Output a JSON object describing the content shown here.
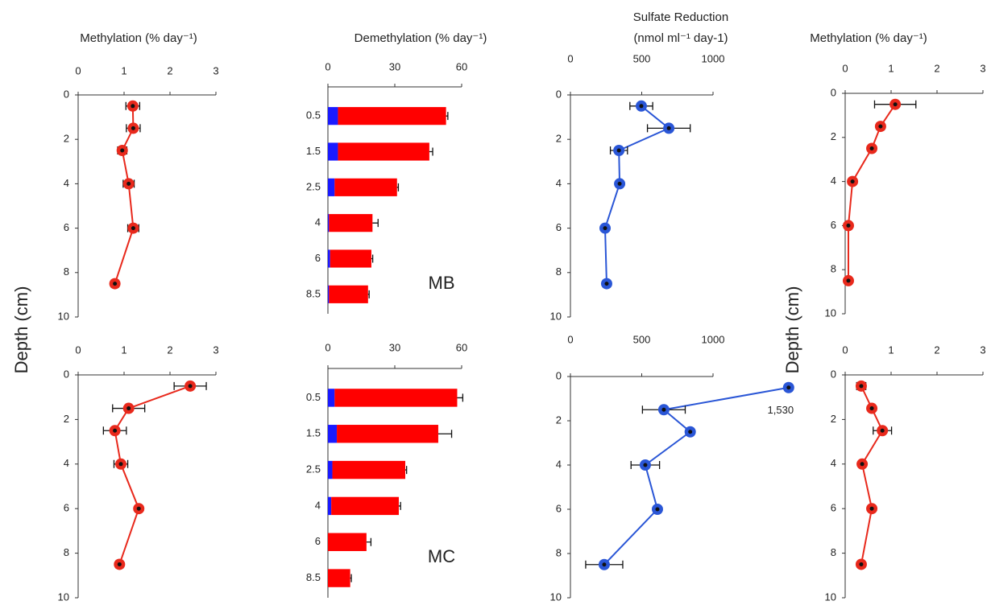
{
  "chart_data": [
    {
      "type": "line",
      "title": "Methylation (% day⁻¹)",
      "ylabel": "Depth (cm)",
      "xlim": [
        0,
        3
      ],
      "xticks": [
        0,
        1,
        2,
        3
      ],
      "ylim": [
        0,
        10
      ],
      "yticks": [
        0,
        2,
        4,
        6,
        8,
        10
      ],
      "depth": [
        0.5,
        1.5,
        2.5,
        4,
        6,
        8.5
      ],
      "series": [
        {
          "color": "#e8291c",
          "values": [
            1.19,
            1.2,
            0.96,
            1.1,
            1.2,
            0.8
          ],
          "errors": [
            0.15,
            0.15,
            0.1,
            0.12,
            0.12,
            0.08
          ]
        }
      ]
    },
    {
      "type": "bar",
      "title": "Demethylation (% day⁻¹)",
      "annotation": "MB",
      "xlim": [
        0,
        60
      ],
      "xticks": [
        0,
        30,
        60
      ],
      "categories": [
        "0.5",
        "1.5",
        "2.5",
        "4",
        "6",
        "8.5"
      ],
      "series": [
        {
          "color": "#1a1aff",
          "values": [
            4.5,
            4.5,
            3,
            0.5,
            1,
            0.5
          ]
        },
        {
          "color": "#ff0000",
          "values": [
            48.5,
            41,
            28,
            19.5,
            18.5,
            17.5
          ],
          "errors": [
            0.8,
            1.5,
            0.6,
            2.5,
            0.6,
            0.5
          ]
        }
      ]
    },
    {
      "type": "line",
      "title": "Sulfate Reduction",
      "subtitle": "(nmol ml⁻¹ day-1)",
      "xlim": [
        0,
        1000
      ],
      "xticks": [
        0,
        500,
        1000
      ],
      "ylim": [
        0,
        10
      ],
      "yticks": [
        0,
        2,
        4,
        6,
        8,
        10
      ],
      "depth": [
        0.5,
        1.5,
        2.5,
        4,
        6,
        8.5
      ],
      "series": [
        {
          "color": "#2a56d6",
          "values": [
            497,
            690,
            340,
            345,
            243,
            254
          ],
          "errors": [
            80,
            150,
            60,
            20,
            15,
            25
          ]
        }
      ]
    },
    {
      "type": "line",
      "title": "Methylation (% day⁻¹)",
      "ylabel": "Depth (cm)",
      "xlim": [
        0,
        3
      ],
      "xticks": [
        0,
        1,
        2,
        3
      ],
      "ylim": [
        0,
        10
      ],
      "yticks": [
        0,
        2,
        4,
        6,
        8,
        10
      ],
      "depth": [
        0.5,
        1.5,
        2.5,
        4,
        6,
        8.5
      ],
      "series": [
        {
          "color": "#e8291c",
          "values": [
            1.09,
            0.77,
            0.58,
            0.16,
            0.07,
            0.07
          ],
          "errors": [
            0.45,
            0.08,
            0.06,
            0.06,
            0.05,
            0.05
          ]
        }
      ]
    },
    {
      "type": "line",
      "xlim": [
        0,
        3
      ],
      "xticks": [
        0,
        1,
        2,
        3
      ],
      "ylim": [
        0,
        10
      ],
      "yticks": [
        0,
        2,
        4,
        6,
        8,
        10
      ],
      "depth": [
        0.5,
        1.5,
        2.5,
        4,
        6,
        8.5
      ],
      "series": [
        {
          "color": "#e8291c",
          "values": [
            2.44,
            1.1,
            0.8,
            0.93,
            1.32,
            0.9
          ],
          "errors": [
            0.35,
            0.35,
            0.25,
            0.15,
            0.06,
            0.08
          ]
        }
      ]
    },
    {
      "type": "bar",
      "annotation": "MC",
      "xlim": [
        0,
        60
      ],
      "xticks": [
        0,
        30,
        60
      ],
      "categories": [
        "0.5",
        "1.5",
        "2.5",
        "4",
        "6",
        "8.5"
      ],
      "series": [
        {
          "color": "#1a1aff",
          "values": [
            3,
            4,
            2,
            1.5,
            0,
            0
          ]
        },
        {
          "color": "#ff0000",
          "values": [
            55,
            45.5,
            32.7,
            30.3,
            17.3,
            10
          ],
          "errors": [
            2.5,
            6,
            0.6,
            0.8,
            2,
            0.5
          ]
        }
      ]
    },
    {
      "type": "line",
      "xlim": [
        0,
        1000
      ],
      "xticks": [
        0,
        500,
        1000
      ],
      "ylim": [
        0,
        10
      ],
      "yticks": [
        0,
        2,
        4,
        6,
        8,
        10
      ],
      "depth": [
        0.5,
        1.5,
        2.5,
        4,
        6,
        8.5
      ],
      "series": [
        {
          "color": "#2a56d6",
          "values": [
            1530,
            655,
            840,
            525,
            610,
            237
          ],
          "errors": [
            0,
            150,
            20,
            100,
            25,
            130
          ],
          "value_labels": [
            "1,530",
            null,
            null,
            null,
            null,
            null
          ]
        }
      ]
    },
    {
      "type": "line",
      "xlim": [
        0,
        3
      ],
      "xticks": [
        0,
        1,
        2,
        3
      ],
      "ylim": [
        0,
        10
      ],
      "yticks": [
        0,
        2,
        4,
        6,
        8,
        10
      ],
      "depth": [
        0.5,
        1.5,
        2.5,
        4,
        6,
        8.5
      ],
      "series": [
        {
          "color": "#e8291c",
          "values": [
            0.35,
            0.58,
            0.81,
            0.37,
            0.58,
            0.35
          ],
          "errors": [
            0.1,
            0.06,
            0.2,
            0.06,
            0.06,
            0.06
          ]
        }
      ]
    }
  ]
}
